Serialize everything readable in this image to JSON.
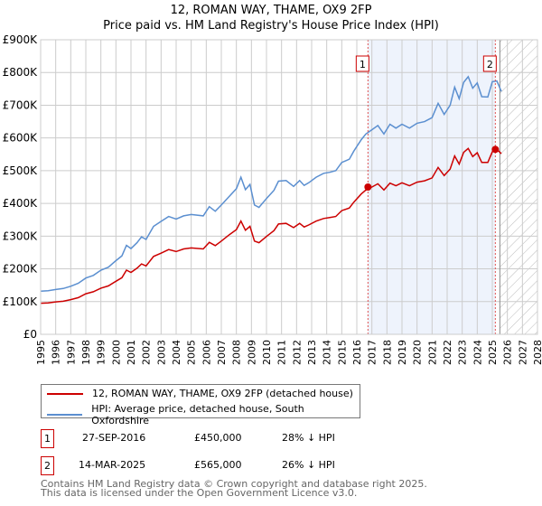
{
  "title": "12, ROMAN WAY, THAME, OX9 2FP",
  "subtitle": "Price paid vs. HM Land Registry's House Price Index (HPI)",
  "chart_data": {
    "type": "line",
    "title": "12, ROMAN WAY, THAME, OX9 2FP",
    "subtitle": "Price paid vs. HM Land Registry's House Price Index (HPI)",
    "xlim": [
      1995,
      2028
    ],
    "ylim": [
      0,
      900000
    ],
    "y_ticks": [
      {
        "v": 0,
        "label": "£0"
      },
      {
        "v": 100000,
        "label": "£100K"
      },
      {
        "v": 200000,
        "label": "£200K"
      },
      {
        "v": 300000,
        "label": "£300K"
      },
      {
        "v": 400000,
        "label": "£400K"
      },
      {
        "v": 500000,
        "label": "£500K"
      },
      {
        "v": 600000,
        "label": "£600K"
      },
      {
        "v": 700000,
        "label": "£700K"
      },
      {
        "v": 800000,
        "label": "£800K"
      },
      {
        "v": 900000,
        "label": "£900K"
      }
    ],
    "x_ticks": [
      "1995",
      "1996",
      "1997",
      "1998",
      "1999",
      "2000",
      "2001",
      "2002",
      "2003",
      "2004",
      "2005",
      "2006",
      "2007",
      "2008",
      "2009",
      "2010",
      "2011",
      "2012",
      "2013",
      "2014",
      "2015",
      "2016",
      "2017",
      "2018",
      "2019",
      "2020",
      "2021",
      "2022",
      "2023",
      "2024",
      "2025",
      "2026",
      "2027",
      "2028"
    ],
    "grid": true,
    "shaded_period": [
      2016.74,
      2025.2
    ],
    "forecast_hatch_from": 2025.5,
    "series": [
      {
        "name": "HPI: Average price, detached house, South Oxfordshire",
        "color": "#5b8fd0",
        "x": [
          1995,
          1995.5,
          1996,
          1996.5,
          1997,
          1997.5,
          1998,
          1998.5,
          1999,
          1999.5,
          2000,
          2000.4,
          2000.7,
          2001,
          2001.4,
          2001.7,
          2002,
          2002.5,
          2003,
          2003.5,
          2004,
          2004.5,
          2005,
          2005.8,
          2006.2,
          2006.6,
          2007,
          2007.5,
          2008,
          2008.3,
          2008.6,
          2008.9,
          2009.2,
          2009.5,
          2010,
          2010.5,
          2010.8,
          2011.3,
          2011.8,
          2012.2,
          2012.5,
          2012.8,
          2013.3,
          2013.8,
          2014.2,
          2014.6,
          2015,
          2015.5,
          2015.8,
          2016.3,
          2016.6,
          2017,
          2017.4,
          2017.8,
          2018.2,
          2018.6,
          2019,
          2019.5,
          2020,
          2020.5,
          2021,
          2021.4,
          2021.8,
          2022.2,
          2022.5,
          2022.8,
          2023.1,
          2023.4,
          2023.7,
          2024,
          2024.3,
          2024.7,
          2025,
          2025.3,
          2025.6
        ],
        "y": [
          132000,
          133000,
          137000,
          140000,
          147000,
          156000,
          172000,
          180000,
          196000,
          205000,
          225000,
          240000,
          272000,
          262000,
          280000,
          298000,
          290000,
          330000,
          345000,
          360000,
          352000,
          362000,
          366000,
          362000,
          390000,
          376000,
          395000,
          420000,
          445000,
          480000,
          442000,
          458000,
          395000,
          388000,
          415000,
          440000,
          468000,
          470000,
          452000,
          470000,
          455000,
          463000,
          480000,
          492000,
          495000,
          500000,
          525000,
          535000,
          560000,
          595000,
          612000,
          625000,
          638000,
          612000,
          642000,
          630000,
          642000,
          630000,
          645000,
          650000,
          662000,
          706000,
          672000,
          700000,
          755000,
          720000,
          770000,
          787000,
          752000,
          768000,
          726000,
          725000,
          772000,
          774000,
          742000
        ]
      },
      {
        "name": "12, ROMAN WAY, THAME, OX9 2FP (detached house)",
        "color": "#cc0000",
        "x": [
          1995,
          1995.5,
          1996,
          1996.5,
          1997,
          1997.5,
          1998,
          1998.5,
          1999,
          1999.5,
          2000,
          2000.4,
          2000.7,
          2001,
          2001.4,
          2001.7,
          2002,
          2002.5,
          2003,
          2003.5,
          2004,
          2004.5,
          2005,
          2005.8,
          2006.2,
          2006.6,
          2007,
          2007.5,
          2008,
          2008.3,
          2008.6,
          2008.9,
          2009.2,
          2009.5,
          2010,
          2010.5,
          2010.8,
          2011.3,
          2011.8,
          2012.2,
          2012.5,
          2012.8,
          2013.3,
          2013.8,
          2014.2,
          2014.6,
          2015,
          2015.5,
          2015.8,
          2016.3,
          2016.6,
          2017,
          2017.4,
          2017.8,
          2018.2,
          2018.6,
          2019,
          2019.5,
          2020,
          2020.5,
          2021,
          2021.4,
          2021.8,
          2022.2,
          2022.5,
          2022.8,
          2023.1,
          2023.4,
          2023.7,
          2024,
          2024.3,
          2024.7,
          2025,
          2025.3,
          2025.6
        ],
        "y": [
          95000,
          96000,
          99000,
          101000,
          106000,
          112000,
          124000,
          130000,
          141000,
          148000,
          162000,
          173000,
          196000,
          189000,
          202000,
          215000,
          209000,
          238000,
          248000,
          259000,
          253000,
          261000,
          264000,
          261000,
          281000,
          271000,
          285000,
          303000,
          320000,
          346000,
          318000,
          330000,
          285000,
          280000,
          299000,
          317000,
          337000,
          339000,
          326000,
          339000,
          328000,
          334000,
          346000,
          354000,
          357000,
          360000,
          378000,
          386000,
          404000,
          429000,
          441000,
          450000,
          460000,
          441000,
          462000,
          454000,
          463000,
          454000,
          465000,
          469000,
          478000,
          510000,
          485000,
          505000,
          545000,
          520000,
          556000,
          568000,
          543000,
          555000,
          525000,
          525000,
          558000,
          565000,
          552000
        ]
      }
    ],
    "annotations": [
      {
        "label": "1",
        "x": 2016.74,
        "y": 450000
      },
      {
        "label": "2",
        "x": 2025.2,
        "y": 565000
      }
    ]
  },
  "legend": {
    "property": "12, ROMAN WAY, THAME, OX9 2FP (detached house)",
    "hpi": "HPI: Average price, detached house, South Oxfordshire"
  },
  "transactions": [
    {
      "num": "1",
      "date": "27-SEP-2016",
      "price": "£450,000",
      "hpi": "28% ↓ HPI"
    },
    {
      "num": "2",
      "date": "14-MAR-2025",
      "price": "£565,000",
      "hpi": "26% ↓ HPI"
    }
  ],
  "footer": {
    "line1": "Contains HM Land Registry data © Crown copyright and database right 2025.",
    "line2": "This data is licensed under the Open Government Licence v3.0."
  }
}
